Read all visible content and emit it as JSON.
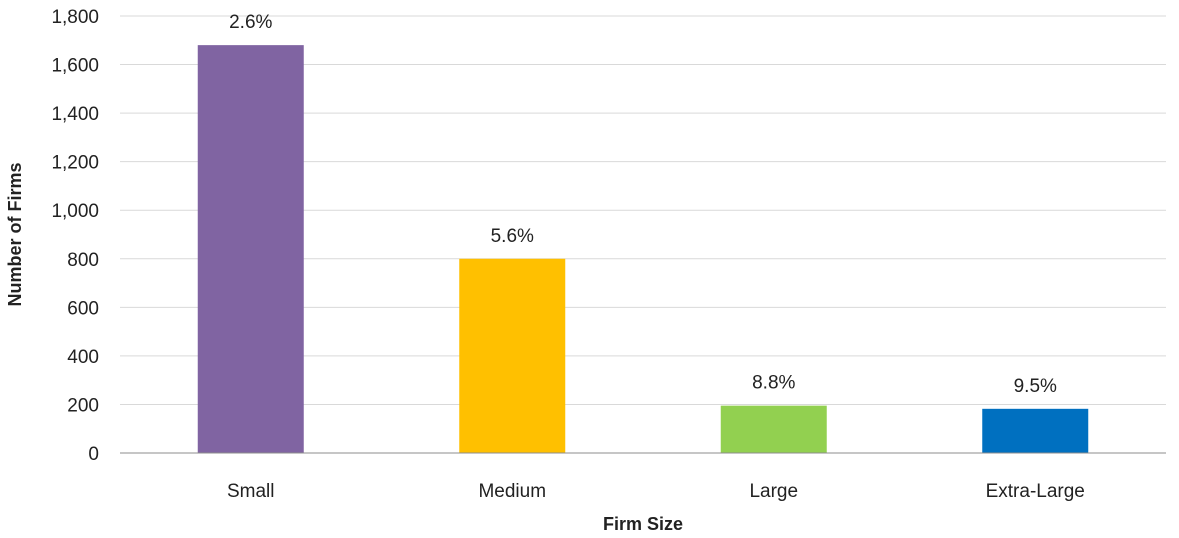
{
  "chart_data": {
    "type": "bar",
    "xlabel": "Firm Size",
    "ylabel": "Number of Firms",
    "ylim": [
      0,
      1800
    ],
    "ytick_step": 200,
    "yticks": [
      "0",
      "200",
      "400",
      "600",
      "800",
      "1,000",
      "1,200",
      "1,400",
      "1,600",
      "1,800"
    ],
    "grid": true,
    "categories": [
      "Small",
      "Medium",
      "Large",
      "Extra-Large"
    ],
    "values": [
      1680,
      800,
      195,
      182
    ],
    "data_labels": [
      "2.6%",
      "5.6%",
      "8.8%",
      "9.5%"
    ],
    "colors": [
      "#8064a2",
      "#ffc000",
      "#92d050",
      "#0070c0"
    ]
  }
}
